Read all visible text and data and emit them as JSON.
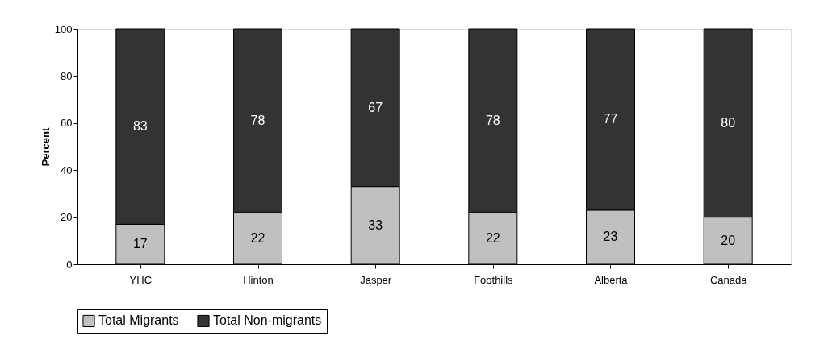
{
  "chart_data": {
    "type": "bar",
    "stacked": true,
    "ylabel": "Percent",
    "categories": [
      "YHC",
      "Hinton",
      "Jasper",
      "Foothills",
      "Alberta",
      "Canada"
    ],
    "series": [
      {
        "name": "Total Migrants",
        "color": "#c0c0c0",
        "values": [
          17,
          22,
          33,
          22,
          23,
          20
        ]
      },
      {
        "name": "Total Non-migrants",
        "color": "#333333",
        "values": [
          83,
          78,
          67,
          78,
          77,
          80
        ]
      }
    ],
    "ylim": [
      0,
      100
    ],
    "yticks": [
      0,
      20,
      40,
      60,
      80,
      100
    ],
    "grid": false,
    "legend": "bottom",
    "data_labels": true
  }
}
